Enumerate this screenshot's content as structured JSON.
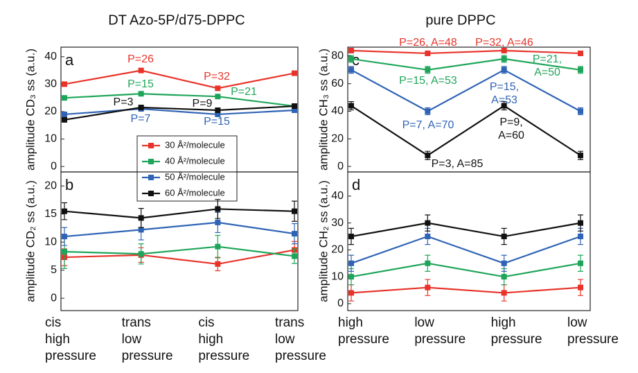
{
  "chart_data": [
    {
      "type": "line",
      "title": "DT Azo-5P/d75-DPPC",
      "label": "a",
      "ylabel": "amplitude CD₃ ss (a.u.)",
      "ylim": [
        -2,
        43.5
      ],
      "yticks": [
        0,
        10,
        20,
        30,
        40
      ],
      "series": [
        {
          "name": "30 Å²/molecule",
          "color": "#e8332a",
          "values": [
            30,
            35,
            28.5,
            34
          ]
        },
        {
          "name": "40 Å²/molecule",
          "color": "#1fa55a",
          "values": [
            25,
            26.5,
            25.5,
            22
          ]
        },
        {
          "name": "50 Å²/molecule",
          "color": "#2f63b5",
          "values": [
            19,
            21,
            19,
            20.5
          ]
        },
        {
          "name": "60 Å²/molecule",
          "color": "#111111",
          "values": [
            17,
            21.5,
            20.5,
            22
          ]
        }
      ],
      "annotations": [
        {
          "lines": [
            "P=26"
          ],
          "color": "#e8332a"
        },
        {
          "lines": [
            "P=32"
          ],
          "color": "#e8332a"
        },
        {
          "lines": [
            "P=15"
          ],
          "color": "#1fa55a"
        },
        {
          "lines": [
            "P=21"
          ],
          "color": "#1fa55a"
        },
        {
          "lines": [
            "P=3"
          ],
          "color": "#111111"
        },
        {
          "lines": [
            "P=9"
          ],
          "color": "#111111"
        },
        {
          "lines": [
            "P=7"
          ],
          "color": "#2f63b5"
        },
        {
          "lines": [
            "P=15"
          ],
          "color": "#2f63b5"
        }
      ]
    },
    {
      "type": "line",
      "label": "b",
      "ylabel": "amplitude CD₂ ss (a.u.)",
      "ylim": [
        -2.2,
        22.5
      ],
      "yticks": [
        0,
        5,
        10,
        15,
        20
      ],
      "categories": [
        [
          "cis",
          "high",
          "pressure"
        ],
        [
          "trans",
          "low",
          "pressure"
        ],
        [
          "cis",
          "high",
          "pressure"
        ],
        [
          "trans",
          "low",
          "pressure"
        ]
      ],
      "series": [
        {
          "color": "#e8332a",
          "values": [
            7.3,
            7.7,
            6.1,
            8.6
          ],
          "errors": [
            1.5,
            1.3,
            1.2,
            1.5
          ]
        },
        {
          "color": "#1fa55a",
          "values": [
            8.3,
            7.9,
            9.2,
            7.5
          ],
          "errors": [
            3,
            1.8,
            2,
            1.3
          ]
        },
        {
          "color": "#2f63b5",
          "values": [
            11,
            12.2,
            13.5,
            11.5
          ],
          "errors": [
            1.6,
            1.8,
            1.8,
            1.8
          ]
        },
        {
          "color": "#111111",
          "values": [
            15.5,
            14.3,
            15.9,
            15.5
          ],
          "errors": [
            1.5,
            1.7,
            1.7,
            1.8
          ]
        }
      ]
    },
    {
      "type": "line",
      "title": "pure DPPC",
      "label": "c",
      "ylabel": "amplitude CH₃ ss (a.u.)",
      "ylim": [
        -4,
        86.5
      ],
      "yticks": [
        0,
        20,
        40,
        60,
        80
      ],
      "series": [
        {
          "color": "#e8332a",
          "values": [
            84,
            82,
            84,
            82
          ],
          "errors": [
            1,
            1,
            1,
            1
          ]
        },
        {
          "color": "#1fa55a",
          "values": [
            78,
            70,
            78,
            70
          ],
          "errors": [
            2.5,
            2.5,
            2.5,
            2.5
          ]
        },
        {
          "color": "#2f63b5",
          "values": [
            70,
            40,
            70,
            40
          ],
          "errors": [
            2.5,
            2.5,
            2.5,
            2.5
          ]
        },
        {
          "color": "#111111",
          "values": [
            44,
            8,
            44,
            8
          ],
          "errors": [
            3,
            3,
            3,
            3
          ]
        }
      ],
      "annotations": [
        {
          "lines": [
            "P=26, A=48"
          ],
          "color": "#e8332a"
        },
        {
          "lines": [
            "P=32, A=46"
          ],
          "color": "#e8332a"
        },
        {
          "lines": [
            "P=15, A=53"
          ],
          "color": "#1fa55a"
        },
        {
          "lines": [
            "P=21,",
            "A=50"
          ],
          "color": "#1fa55a"
        },
        {
          "lines": [
            "P=7, A=70"
          ],
          "color": "#2f63b5"
        },
        {
          "lines": [
            "P=15,",
            "A=53"
          ],
          "color": "#2f63b5"
        },
        {
          "lines": [
            "P=9,",
            "A=60"
          ],
          "color": "#111111"
        },
        {
          "lines": [
            "P=3, A=85"
          ],
          "color": "#111111"
        }
      ]
    },
    {
      "type": "line",
      "label": "d",
      "ylabel": "amplitude CH₂ ss (a.u.)",
      "ylim": [
        -2.6,
        49
      ],
      "yticks": [
        0,
        10,
        20,
        30,
        40
      ],
      "categories": [
        [
          "high",
          "pressure"
        ],
        [
          "low",
          "pressure"
        ],
        [
          "high",
          "pressure"
        ],
        [
          "low",
          "pressure"
        ]
      ],
      "series": [
        {
          "color": "#e8332a",
          "values": [
            4,
            6,
            4,
            6
          ],
          "errors": [
            3,
            3,
            3,
            3
          ]
        },
        {
          "color": "#1fa55a",
          "values": [
            10,
            15,
            10,
            15
          ],
          "errors": [
            3,
            3,
            3,
            3
          ]
        },
        {
          "color": "#2f63b5",
          "values": [
            15,
            25,
            15,
            25
          ],
          "errors": [
            3,
            3,
            3,
            3
          ]
        },
        {
          "color": "#111111",
          "values": [
            25,
            30,
            25,
            30
          ],
          "errors": [
            3,
            3,
            3,
            3
          ]
        }
      ]
    }
  ]
}
